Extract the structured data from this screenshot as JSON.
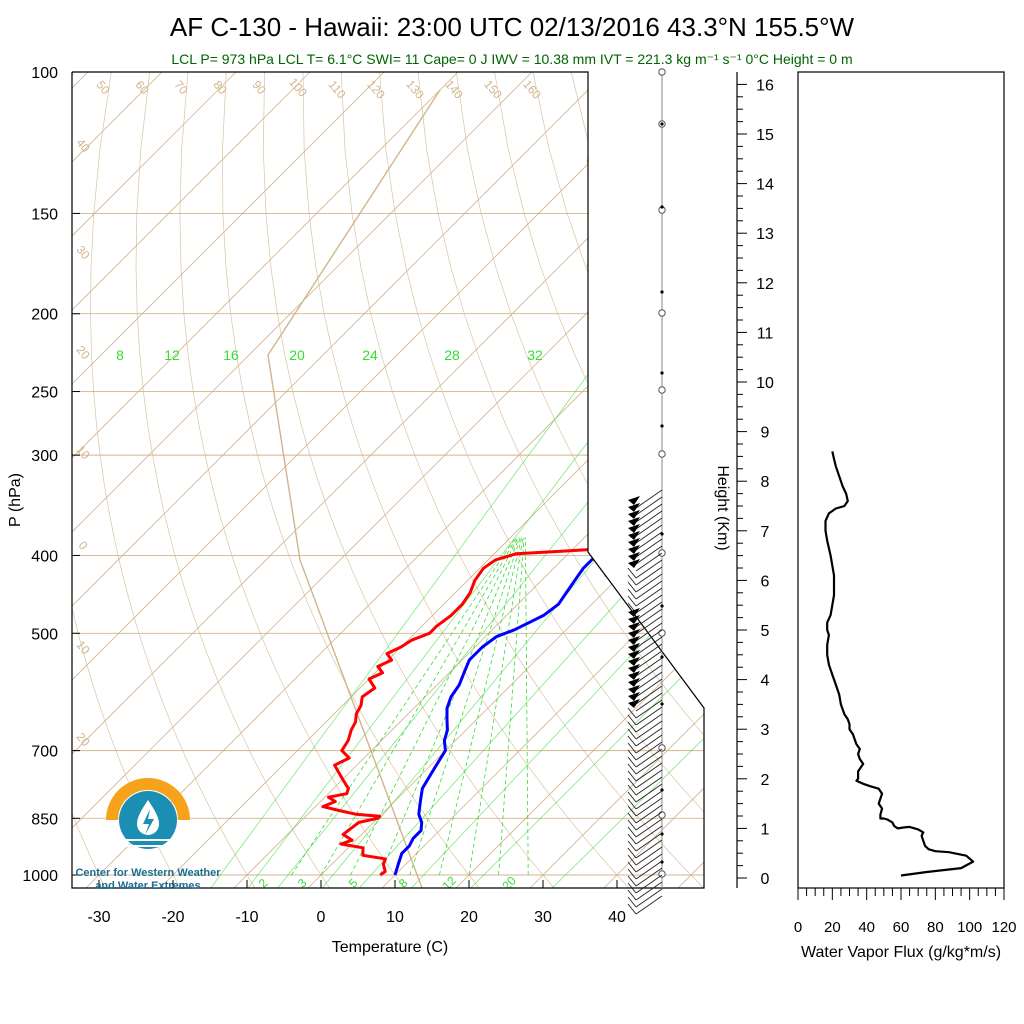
{
  "title": "AF C-130 - Hawaii: 23:00 UTC 02/13/2016  43.3°N 155.5°W",
  "subtitle": "LCL P= 973 hPa  LCL T= 6.1°C  SWI= 11  Cape= 0 J  IWV = 10.38 mm  IVT = 221.3 kg m⁻¹ s⁻¹  0°C Height = 0 m",
  "colors": {
    "temperature": "#ff0000",
    "dewpoint": "#0000ff",
    "background_lines": "#d2b48c",
    "mixing_ratio": "#33dd33",
    "subtitle": "#006400",
    "logo_orange": "#f7a21b",
    "logo_blue": "#1a8fb3"
  },
  "logo": {
    "line1": "Center for Western Weather",
    "line2": "and Water Extremes"
  },
  "chart_data": [
    {
      "type": "line",
      "name": "skew-t",
      "xlabel": "Temperature (C)",
      "ylabel": "P (hPa)",
      "x_ticks": [
        -30,
        -20,
        -10,
        0,
        10,
        20,
        30,
        40
      ],
      "y_ticks": [
        100,
        150,
        200,
        250,
        300,
        400,
        500,
        700,
        850,
        1000
      ],
      "xlim": [
        -34,
        48
      ],
      "ylim": [
        1050,
        100
      ],
      "y_scale": "log",
      "series": [
        {
          "color": "#ff0000",
          "points": [
            [
              8.0,
              1000
            ],
            [
              8.2,
              990
            ],
            [
              7.0,
              970
            ],
            [
              6.5,
              955
            ],
            [
              3.0,
              945
            ],
            [
              2.0,
              925
            ],
            [
              -1.5,
              915
            ],
            [
              -0.5,
              905
            ],
            [
              -2.5,
              890
            ],
            [
              -2.0,
              860
            ],
            [
              0.0,
              850
            ],
            [
              0.0,
              845
            ],
            [
              -3.5,
              840
            ],
            [
              -6.0,
              832
            ],
            [
              -9.0,
              822
            ],
            [
              -8.0,
              810
            ],
            [
              -9.5,
              800
            ],
            [
              -7.5,
              792
            ],
            [
              -8.0,
              780
            ],
            [
              -9.0,
              770
            ],
            [
              -10.0,
              760
            ],
            [
              -11.5,
              745
            ],
            [
              -13.0,
              730
            ],
            [
              -12.0,
              715
            ],
            [
              -14.0,
              700
            ],
            [
              -14.5,
              680
            ],
            [
              -15.5,
              660
            ],
            [
              -16.0,
              645
            ],
            [
              -17.0,
              630
            ],
            [
              -17.5,
              615
            ],
            [
              -18.5,
              600
            ],
            [
              -18.0,
              585
            ],
            [
              -20.0,
              570
            ],
            [
              -19.0,
              560
            ],
            [
              -20.5,
              550
            ],
            [
              -19.5,
              540
            ],
            [
              -21.0,
              530
            ],
            [
              -20.0,
              520
            ],
            [
              -19.5,
              510
            ],
            [
              -18.0,
              500
            ],
            [
              -18.0,
              490
            ],
            [
              -17.5,
              475
            ],
            [
              -17.5,
              460
            ],
            [
              -18.0,
              445
            ],
            [
              -19.0,
              430
            ],
            [
              -19.5,
              415
            ],
            [
              -19.0,
              405
            ],
            [
              -17.0,
              398
            ],
            [
              -11.0,
              395
            ],
            [
              -7.0,
              393
            ],
            [
              -6.0,
              390
            ],
            [
              -6.0,
              385
            ],
            [
              -6.5,
              380
            ],
            [
              -7.0,
              372
            ],
            [
              -7.5,
              365
            ],
            [
              -7.5,
              358
            ],
            [
              -8.5,
              350
            ],
            [
              -9.0,
              345
            ],
            [
              -9.0,
              340
            ]
          ]
        },
        {
          "color": "#0000ff",
          "points": [
            [
              10.0,
              1000
            ],
            [
              9.5,
              985
            ],
            [
              9.0,
              970
            ],
            [
              8.5,
              955
            ],
            [
              8.0,
              940
            ],
            [
              8.0,
              920
            ],
            [
              7.5,
              900
            ],
            [
              7.5,
              880
            ],
            [
              6.5,
              860
            ],
            [
              5.0,
              840
            ],
            [
              4.0,
              820
            ],
            [
              3.0,
              800
            ],
            [
              2.0,
              780
            ],
            [
              1.5,
              760
            ],
            [
              1.0,
              740
            ],
            [
              0.5,
              720
            ],
            [
              0.0,
              700
            ],
            [
              -1.5,
              680
            ],
            [
              -2.5,
              660
            ],
            [
              -4.0,
              640
            ],
            [
              -5.5,
              620
            ],
            [
              -6.5,
              600
            ],
            [
              -7.0,
              580
            ],
            [
              -8.0,
              560
            ],
            [
              -9.0,
              540
            ],
            [
              -9.0,
              520
            ],
            [
              -8.5,
              505
            ],
            [
              -7.0,
              495
            ],
            [
              -6.0,
              485
            ],
            [
              -5.0,
              475
            ],
            [
              -4.5,
              460
            ],
            [
              -5.0,
              445
            ],
            [
              -5.5,
              430
            ],
            [
              -6.0,
              415
            ],
            [
              -6.0,
              400
            ],
            [
              -6.5,
              385
            ],
            [
              -7.0,
              370
            ],
            [
              -7.0,
              360
            ],
            [
              -7.5,
              350
            ],
            [
              -7.5,
              340
            ]
          ]
        }
      ],
      "isotherm_labels": [
        50,
        60,
        70,
        80,
        90,
        100,
        110,
        120,
        130,
        140,
        150,
        160,
        40,
        30,
        20,
        10,
        0,
        10,
        20,
        30,
        20,
        10,
        0,
        10,
        20
      ],
      "mixing_ratio_labels_top": [
        "8",
        "12",
        "16",
        "20",
        "24",
        "28",
        "32"
      ],
      "mixing_ratio_labels_bottom": [
        "2",
        "3",
        "5",
        "8",
        "12",
        "20"
      ]
    },
    {
      "type": "line",
      "name": "water-vapor-flux",
      "xlabel": "Water Vapor Flux (g/kg*m/s)",
      "ylabel": "Height (Km)",
      "xlim": [
        0,
        120
      ],
      "ylim": [
        -0.3,
        16.3
      ],
      "x_ticks": [
        0,
        20,
        40,
        60,
        80,
        100,
        120
      ],
      "y_ticks": [
        0,
        1,
        2,
        3,
        4,
        5,
        6,
        7,
        8,
        9,
        10,
        11,
        12,
        13,
        14,
        15,
        16
      ],
      "series": [
        {
          "color": "#000000",
          "points": [
            [
              60,
              0.05
            ],
            [
              75,
              0.12
            ],
            [
              95,
              0.2
            ],
            [
              102,
              0.33
            ],
            [
              98,
              0.45
            ],
            [
              88,
              0.52
            ],
            [
              80,
              0.54
            ],
            [
              76,
              0.58
            ],
            [
              74,
              0.65
            ],
            [
              73,
              0.75
            ],
            [
              72,
              0.85
            ],
            [
              73,
              0.92
            ],
            [
              70,
              0.98
            ],
            [
              65,
              1.03
            ],
            [
              62,
              1.02
            ],
            [
              58,
              1.0
            ],
            [
              56,
              1.05
            ],
            [
              55,
              1.12
            ],
            [
              52,
              1.18
            ],
            [
              50,
              1.2
            ],
            [
              48,
              1.2
            ],
            [
              48,
              1.28
            ],
            [
              49,
              1.4
            ],
            [
              47,
              1.5
            ],
            [
              48,
              1.6
            ],
            [
              49,
              1.7
            ],
            [
              47,
              1.8
            ],
            [
              45,
              1.82
            ],
            [
              42,
              1.85
            ],
            [
              38,
              1.9
            ],
            [
              36,
              1.93
            ],
            [
              34,
              1.96
            ],
            [
              35,
              2.0
            ],
            [
              35,
              2.15
            ],
            [
              38,
              2.3
            ],
            [
              36,
              2.4
            ],
            [
              35,
              2.5
            ],
            [
              36,
              2.6
            ],
            [
              34,
              2.7
            ],
            [
              33,
              2.8
            ],
            [
              32,
              2.9
            ],
            [
              30,
              3.0
            ],
            [
              30,
              3.1
            ],
            [
              29,
              3.2
            ],
            [
              27,
              3.3
            ],
            [
              25,
              3.5
            ],
            [
              24,
              3.7
            ],
            [
              22,
              3.9
            ],
            [
              20,
              4.1
            ],
            [
              18,
              4.3
            ],
            [
              17,
              4.5
            ],
            [
              17,
              4.7
            ],
            [
              18,
              4.9
            ],
            [
              17,
              5.0
            ],
            [
              17,
              5.15
            ],
            [
              19,
              5.3
            ],
            [
              20,
              5.5
            ],
            [
              21,
              5.7
            ],
            [
              21,
              5.9
            ],
            [
              21,
              6.1
            ],
            [
              20,
              6.3
            ],
            [
              19,
              6.5
            ],
            [
              17,
              6.8
            ],
            [
              16,
              7.0
            ],
            [
              16,
              7.2
            ],
            [
              18,
              7.35
            ],
            [
              22,
              7.45
            ],
            [
              27,
              7.5
            ],
            [
              29,
              7.6
            ],
            [
              28,
              7.75
            ],
            [
              26,
              7.9
            ],
            [
              24,
              8.1
            ],
            [
              22,
              8.3
            ],
            [
              21,
              8.45
            ],
            [
              20,
              8.6
            ]
          ]
        }
      ]
    }
  ]
}
